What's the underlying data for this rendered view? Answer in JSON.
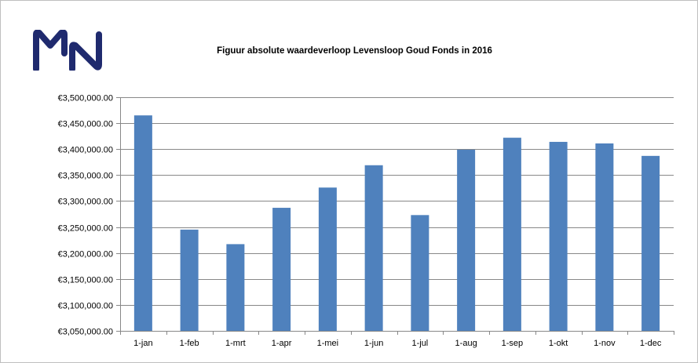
{
  "chart_data": {
    "type": "bar",
    "title": "Figuur absolute waardeverloop Levensloop Goud Fonds in 2016",
    "categories": [
      "1-jan",
      "1-feb",
      "1-mrt",
      "1-apr",
      "1-mei",
      "1-jun",
      "1-jul",
      "1-aug",
      "1-sep",
      "1-okt",
      "1-nov",
      "1-dec"
    ],
    "values": [
      3465000,
      3245000,
      3217000,
      3287000,
      3326000,
      3369000,
      3273000,
      3399000,
      3422000,
      3414000,
      3411000,
      3387000
    ],
    "ylim": [
      3050000,
      3500000
    ],
    "yticks": [
      3050000,
      3100000,
      3150000,
      3200000,
      3250000,
      3300000,
      3350000,
      3400000,
      3450000,
      3500000
    ],
    "ytick_labels": [
      "€3,050,000.00",
      "€3,100,000.00",
      "€3,150,000.00",
      "€3,200,000.00",
      "€3,250,000.00",
      "€3,300,000.00",
      "€3,350,000.00",
      "€3,400,000.00",
      "€3,450,000.00",
      "€3,500,000.00"
    ],
    "grid": true,
    "bar_color": "#4f81bd",
    "gridline_color": "#888888"
  },
  "logo": {
    "name": "mn-logo",
    "color": "#1f2a6e"
  }
}
